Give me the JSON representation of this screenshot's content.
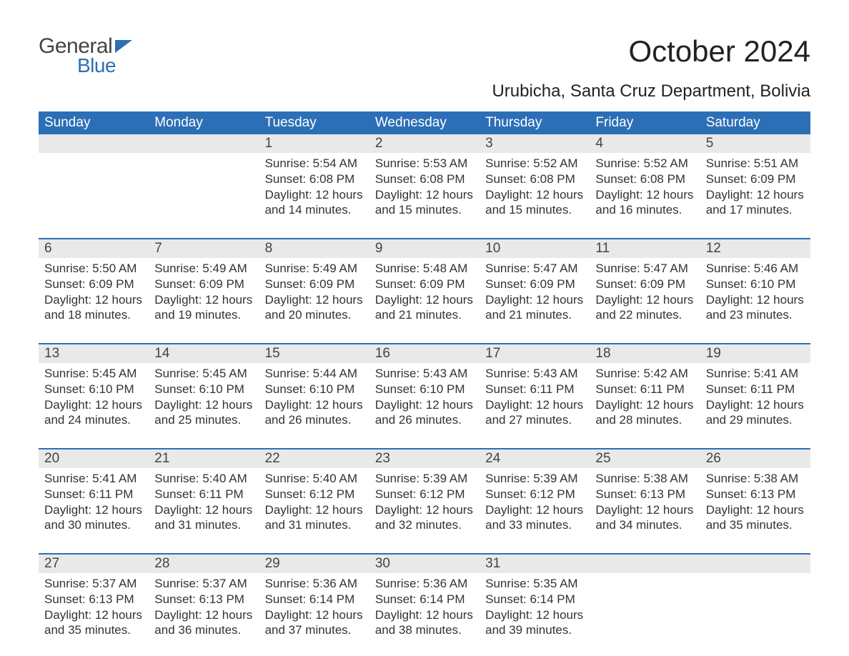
{
  "logo": {
    "line1": "General",
    "line2": "Blue"
  },
  "title": "October 2024",
  "subtitle": "Urubicha, Santa Cruz Department, Bolivia",
  "colors": {
    "header_bg": "#2d6fb6",
    "header_text": "#ffffff",
    "daynum_bg": "#e9e9e9",
    "row_sep": "#2d6fb6",
    "body_text": "#333333",
    "page_bg": "#ffffff"
  },
  "typography": {
    "title_fontsize": 42,
    "subtitle_fontsize": 24,
    "header_fontsize": 19,
    "daynum_fontsize": 19,
    "cell_fontsize": 17
  },
  "day_headers": [
    "Sunday",
    "Monday",
    "Tuesday",
    "Wednesday",
    "Thursday",
    "Friday",
    "Saturday"
  ],
  "labels": {
    "sunrise": "Sunrise:",
    "sunset": "Sunset:",
    "daylight": "Daylight:"
  },
  "weeks": [
    [
      null,
      null,
      {
        "n": "1",
        "sr": "5:54 AM",
        "ss": "6:08 PM",
        "dl": "12 hours and 14 minutes."
      },
      {
        "n": "2",
        "sr": "5:53 AM",
        "ss": "6:08 PM",
        "dl": "12 hours and 15 minutes."
      },
      {
        "n": "3",
        "sr": "5:52 AM",
        "ss": "6:08 PM",
        "dl": "12 hours and 15 minutes."
      },
      {
        "n": "4",
        "sr": "5:52 AM",
        "ss": "6:08 PM",
        "dl": "12 hours and 16 minutes."
      },
      {
        "n": "5",
        "sr": "5:51 AM",
        "ss": "6:09 PM",
        "dl": "12 hours and 17 minutes."
      }
    ],
    [
      {
        "n": "6",
        "sr": "5:50 AM",
        "ss": "6:09 PM",
        "dl": "12 hours and 18 minutes."
      },
      {
        "n": "7",
        "sr": "5:49 AM",
        "ss": "6:09 PM",
        "dl": "12 hours and 19 minutes."
      },
      {
        "n": "8",
        "sr": "5:49 AM",
        "ss": "6:09 PM",
        "dl": "12 hours and 20 minutes."
      },
      {
        "n": "9",
        "sr": "5:48 AM",
        "ss": "6:09 PM",
        "dl": "12 hours and 21 minutes."
      },
      {
        "n": "10",
        "sr": "5:47 AM",
        "ss": "6:09 PM",
        "dl": "12 hours and 21 minutes."
      },
      {
        "n": "11",
        "sr": "5:47 AM",
        "ss": "6:09 PM",
        "dl": "12 hours and 22 minutes."
      },
      {
        "n": "12",
        "sr": "5:46 AM",
        "ss": "6:10 PM",
        "dl": "12 hours and 23 minutes."
      }
    ],
    [
      {
        "n": "13",
        "sr": "5:45 AM",
        "ss": "6:10 PM",
        "dl": "12 hours and 24 minutes."
      },
      {
        "n": "14",
        "sr": "5:45 AM",
        "ss": "6:10 PM",
        "dl": "12 hours and 25 minutes."
      },
      {
        "n": "15",
        "sr": "5:44 AM",
        "ss": "6:10 PM",
        "dl": "12 hours and 26 minutes."
      },
      {
        "n": "16",
        "sr": "5:43 AM",
        "ss": "6:10 PM",
        "dl": "12 hours and 26 minutes."
      },
      {
        "n": "17",
        "sr": "5:43 AM",
        "ss": "6:11 PM",
        "dl": "12 hours and 27 minutes."
      },
      {
        "n": "18",
        "sr": "5:42 AM",
        "ss": "6:11 PM",
        "dl": "12 hours and 28 minutes."
      },
      {
        "n": "19",
        "sr": "5:41 AM",
        "ss": "6:11 PM",
        "dl": "12 hours and 29 minutes."
      }
    ],
    [
      {
        "n": "20",
        "sr": "5:41 AM",
        "ss": "6:11 PM",
        "dl": "12 hours and 30 minutes."
      },
      {
        "n": "21",
        "sr": "5:40 AM",
        "ss": "6:11 PM",
        "dl": "12 hours and 31 minutes."
      },
      {
        "n": "22",
        "sr": "5:40 AM",
        "ss": "6:12 PM",
        "dl": "12 hours and 31 minutes."
      },
      {
        "n": "23",
        "sr": "5:39 AM",
        "ss": "6:12 PM",
        "dl": "12 hours and 32 minutes."
      },
      {
        "n": "24",
        "sr": "5:39 AM",
        "ss": "6:12 PM",
        "dl": "12 hours and 33 minutes."
      },
      {
        "n": "25",
        "sr": "5:38 AM",
        "ss": "6:13 PM",
        "dl": "12 hours and 34 minutes."
      },
      {
        "n": "26",
        "sr": "5:38 AM",
        "ss": "6:13 PM",
        "dl": "12 hours and 35 minutes."
      }
    ],
    [
      {
        "n": "27",
        "sr": "5:37 AM",
        "ss": "6:13 PM",
        "dl": "12 hours and 35 minutes."
      },
      {
        "n": "28",
        "sr": "5:37 AM",
        "ss": "6:13 PM",
        "dl": "12 hours and 36 minutes."
      },
      {
        "n": "29",
        "sr": "5:36 AM",
        "ss": "6:14 PM",
        "dl": "12 hours and 37 minutes."
      },
      {
        "n": "30",
        "sr": "5:36 AM",
        "ss": "6:14 PM",
        "dl": "12 hours and 38 minutes."
      },
      {
        "n": "31",
        "sr": "5:35 AM",
        "ss": "6:14 PM",
        "dl": "12 hours and 39 minutes."
      },
      null,
      null
    ]
  ]
}
